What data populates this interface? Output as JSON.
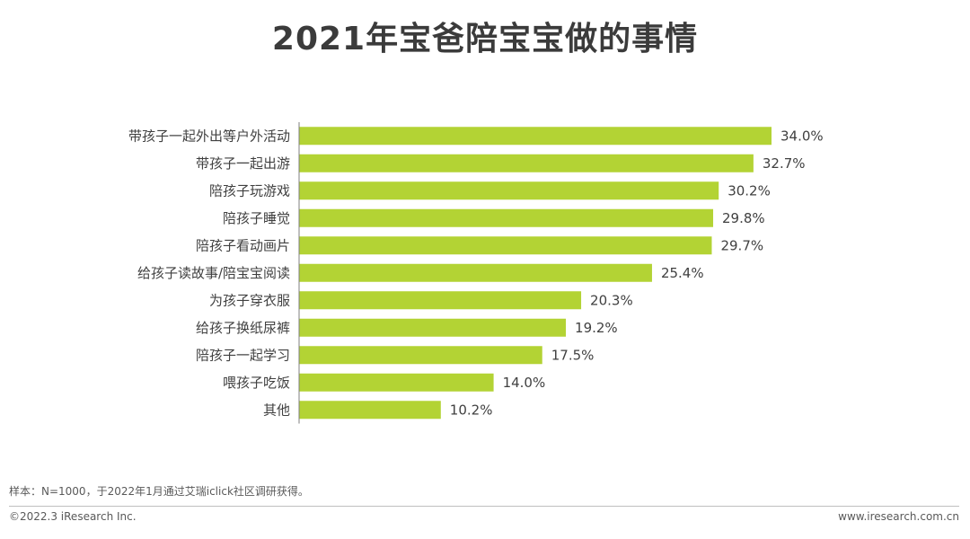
{
  "chart_data": {
    "type": "bar",
    "orientation": "horizontal",
    "title": "2021年宝爸陪宝宝做的事情",
    "categories": [
      "带孩子一起外出等户外活动",
      "带孩子一起出游",
      "陪孩子玩游戏",
      "陪孩子睡觉",
      "陪孩子看动画片",
      "给孩子读故事/陪宝宝阅读",
      "为孩子穿衣服",
      "给孩子换纸尿裤",
      "陪孩子一起学习",
      "喂孩子吃饭",
      "其他"
    ],
    "values": [
      34.0,
      32.7,
      30.2,
      29.8,
      29.7,
      25.4,
      20.3,
      19.2,
      17.5,
      14.0,
      10.2
    ],
    "value_labels": [
      "34.0%",
      "32.7%",
      "30.2%",
      "29.8%",
      "29.7%",
      "25.4%",
      "20.3%",
      "19.2%",
      "17.5%",
      "14.0%",
      "10.2%"
    ],
    "xlabel": "",
    "ylabel": "",
    "xlim": [
      0,
      35
    ],
    "unit": "%",
    "bar_color": "#b3d334",
    "axis_color": "#7f7f7f",
    "legend": "none",
    "grid": false
  },
  "footer": {
    "note": "样本：N=1000，于2022年1月通过艾瑞iclick社区调研获得。",
    "copyright": "©2022.3 iResearch Inc.",
    "website": "www.iresearch.com.cn"
  }
}
